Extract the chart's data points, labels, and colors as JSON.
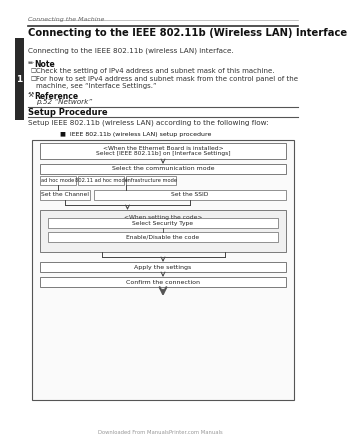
{
  "page_header": "Connecting the Machine",
  "chapter_number": "1",
  "title": "Connecting to the IEEE 802.11b (Wireless LAN) Interface",
  "subtitle": "Connecting to the IEEE 802.11b (wireless LAN) interface.",
  "note_label": "Note",
  "note_line1": "Check the setting of IPv4 address and subnet mask of this machine.",
  "note_line2a": "For how to set IPv4 address and subnet mask from the control panel of the",
  "note_line2b": "machine, see “Interface Settings.”",
  "reference_label": "Reference",
  "reference_text": "p.52 “Network”",
  "section_header": "Setup Procedure",
  "section_text": "Setup IEEE 802.11b (wireless LAN) according to the following flow:",
  "diagram_title": "■  IEEE 802.11b (wireless LAN) setup procedure",
  "box1_line1": "<When the Ethernet Board is installed>",
  "box1_line2": "Select [IEEE 802.11b] on [Interface Settings]",
  "box2": "Select the communication mode",
  "btn1": "ad hoc mode",
  "btn2": "802.11 ad hoc mode",
  "btn3": "infrastructure mode",
  "box3a": "Set the Channel",
  "box3b": "Set the SSID",
  "group_label": "<When setting the code>",
  "box4a": "Select Security Type",
  "box4b": "Enable/Disable the code",
  "box5": "Apply the settings",
  "box6": "Confirm the connection",
  "footer_text": "Downloaded From ManualsPrinter.com Manuals",
  "bg_color": "#ffffff",
  "tab_color": "#2a2a2a",
  "header_color": "#555555",
  "text_dark": "#111111",
  "text_mid": "#333333",
  "text_light": "#666666",
  "box_edge": "#666666",
  "arrow_color": "#444444"
}
